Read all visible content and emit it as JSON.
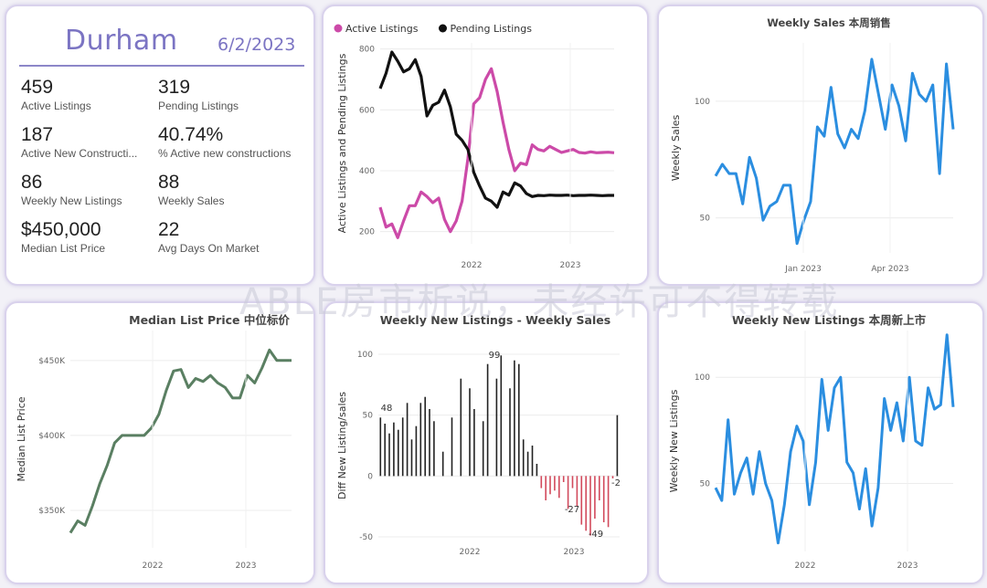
{
  "kpi_card": {
    "title": "Durham",
    "date": "6/2/2023",
    "items": [
      {
        "value": "459",
        "label": "Active Listings"
      },
      {
        "value": "319",
        "label": "Pending Listings"
      },
      {
        "value": "187",
        "label": "Active New Constructi..."
      },
      {
        "value": "40.74%",
        "label": "% Active new constructions"
      },
      {
        "value": "86",
        "label": "Weekly New Listings"
      },
      {
        "value": "88",
        "label": "Weekly Sales"
      },
      {
        "value": "$450,000",
        "label": "Median List Price"
      },
      {
        "value": "22",
        "label": "Avg Days On Market"
      }
    ]
  },
  "watermark": "ABLE房市析说，未经许可不得转载",
  "colors": {
    "active": "#cc4aa8",
    "pending": "#111111",
    "blue": "#2b8ee0",
    "green": "#5a7f62",
    "diff_pos": "#222222",
    "diff_neg": "#d24a5c",
    "kpi_accent": "#7b74c3"
  },
  "chart_data": [
    {
      "id": "active_pending",
      "type": "line",
      "title": "",
      "xlabel": "",
      "ylabel": "Active Listings and Pending Listings",
      "ylim": [
        160,
        820
      ],
      "yticks": [
        200,
        400,
        600,
        800
      ],
      "xticks": [
        "2022",
        "2023"
      ],
      "legend": "top-left",
      "series": [
        {
          "name": "Active Listings",
          "color": "#cc4aa8",
          "x": [
            0,
            1,
            2,
            3,
            4,
            5,
            6,
            7,
            8,
            9,
            10,
            11,
            12,
            13,
            14,
            15,
            16,
            17,
            18,
            19,
            20,
            21,
            22,
            23,
            24,
            25,
            26,
            27,
            28,
            29,
            30,
            31,
            32,
            33,
            34,
            35,
            36,
            37,
            38,
            39,
            40
          ],
          "y": [
            280,
            215,
            225,
            180,
            235,
            285,
            285,
            330,
            315,
            295,
            310,
            240,
            200,
            235,
            300,
            440,
            620,
            640,
            700,
            735,
            660,
            560,
            470,
            400,
            425,
            420,
            485,
            470,
            465,
            480,
            470,
            460,
            465,
            470,
            460,
            458,
            462,
            459,
            460,
            461,
            459
          ]
        },
        {
          "name": "Pending Listings",
          "color": "#111111",
          "x": [
            0,
            1,
            2,
            3,
            4,
            5,
            6,
            7,
            8,
            9,
            10,
            11,
            12,
            13,
            14,
            15,
            16,
            17,
            18,
            19,
            20,
            21,
            22,
            23,
            24,
            25,
            26,
            27,
            28,
            29,
            30,
            31,
            32,
            33,
            34,
            35,
            36,
            37,
            38,
            39,
            40
          ],
          "y": [
            670,
            720,
            790,
            760,
            725,
            735,
            765,
            710,
            580,
            615,
            625,
            665,
            610,
            520,
            500,
            470,
            395,
            350,
            310,
            300,
            280,
            330,
            320,
            360,
            350,
            325,
            315,
            319,
            318,
            320,
            319,
            319,
            320,
            318,
            319,
            319,
            320,
            319,
            318,
            319,
            319
          ]
        }
      ]
    },
    {
      "id": "weekly_sales",
      "type": "line",
      "title": "Weekly Sales 本周销售",
      "xlabel": "",
      "ylabel": "Weekly Sales",
      "ylim": [
        35,
        125
      ],
      "yticks": [
        50,
        100
      ],
      "xticks": [
        "Jan 2023",
        "Apr 2023"
      ],
      "series": [
        {
          "name": "Weekly Sales",
          "color": "#2b8ee0",
          "y": [
            68,
            73,
            69,
            69,
            56,
            76,
            67,
            49,
            55,
            57,
            64,
            64,
            39,
            49,
            57,
            89,
            85,
            106,
            86,
            80,
            88,
            84,
            96,
            118,
            103,
            88,
            107,
            98,
            83,
            112,
            103,
            100,
            107,
            69,
            116,
            88
          ]
        }
      ]
    },
    {
      "id": "median_list_price",
      "type": "line",
      "title": "Median List Price  中位标价",
      "xlabel": "",
      "ylabel": "Median List Price",
      "ylim": [
        325000,
        470000
      ],
      "yticks": [
        "$350K",
        "$400K",
        "$450K"
      ],
      "ytick_values": [
        350000,
        400000,
        450000
      ],
      "xticks": [
        "2022",
        "2023"
      ],
      "series": [
        {
          "name": "Median List Price",
          "color": "#5a7f62",
          "y": [
            335000,
            343000,
            340000,
            353000,
            368000,
            380000,
            395000,
            400000,
            400000,
            400000,
            400000,
            405000,
            414000,
            430000,
            443000,
            444000,
            432000,
            438000,
            436000,
            440000,
            435000,
            432000,
            425000,
            425000,
            440000,
            435000,
            445000,
            457000,
            450000,
            450000,
            450000
          ]
        }
      ]
    },
    {
      "id": "diff_new_listings_sales",
      "type": "bar",
      "title": "Weekly New Listings - Weekly Sales",
      "xlabel": "",
      "ylabel": "Diff New Listing/sales",
      "ylim": [
        -62,
        112
      ],
      "yticks": [
        -50,
        0,
        50,
        100
      ],
      "xticks": [
        "2022",
        "2023"
      ],
      "annotations": [
        "48",
        "99",
        "-27",
        "-49",
        "-2"
      ],
      "values": [
        48,
        43,
        35,
        44,
        38,
        48,
        60,
        30,
        41,
        60,
        65,
        55,
        45,
        0,
        20,
        0,
        48,
        0,
        80,
        0,
        72,
        55,
        0,
        45,
        92,
        0,
        80,
        99,
        0,
        72,
        95,
        92,
        30,
        20,
        25,
        10,
        -10,
        -20,
        -15,
        -12,
        -18,
        -5,
        -27,
        -10,
        -25,
        -40,
        -45,
        -49,
        -35,
        -20,
        -38,
        -42,
        -2,
        50
      ]
    },
    {
      "id": "weekly_new_listings",
      "type": "line",
      "title": "Weekly New Listings  本周新上市",
      "xlabel": "",
      "ylabel": "Weekly New Listings",
      "ylim": [
        18,
        122
      ],
      "yticks": [
        50,
        100
      ],
      "xticks": [
        "2022",
        "2023"
      ],
      "series": [
        {
          "name": "Weekly New Listings",
          "color": "#2b8ee0",
          "y": [
            48,
            42,
            80,
            45,
            55,
            62,
            45,
            65,
            50,
            42,
            22,
            40,
            65,
            77,
            70,
            40,
            60,
            99,
            75,
            95,
            100,
            60,
            55,
            38,
            57,
            30,
            48,
            90,
            75,
            88,
            70,
            100,
            70,
            68,
            95,
            85,
            87,
            120,
            86
          ]
        }
      ]
    }
  ]
}
